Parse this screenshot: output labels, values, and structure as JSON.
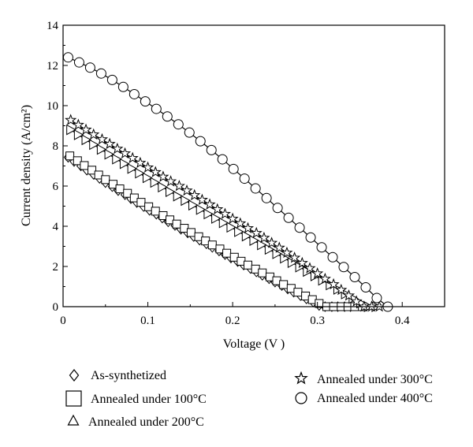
{
  "chart_data": {
    "type": "scatter",
    "xlabel": "Voltage (V )",
    "ylabel": "Current density (A/cm²)",
    "xlim": [
      0,
      0.45
    ],
    "ylim": [
      0,
      14
    ],
    "xticks": [
      {
        "value": 0,
        "label": "0"
      },
      {
        "value": 0.1,
        "label": "0.1"
      },
      {
        "value": 0.2,
        "label": "0.2"
      },
      {
        "value": 0.3,
        "label": "0.3"
      },
      {
        "value": 0.4,
        "label": "0.4"
      }
    ],
    "yticks": [
      {
        "value": 0,
        "label": "0"
      },
      {
        "value": 2,
        "label": "2"
      },
      {
        "value": 4,
        "label": "4"
      },
      {
        "value": 6,
        "label": "6"
      },
      {
        "value": 8,
        "label": "8"
      },
      {
        "value": 10,
        "label": "10"
      },
      {
        "value": 12,
        "label": "12"
      },
      {
        "value": 14,
        "label": "14"
      }
    ],
    "grid": false,
    "legend_position": "bottom",
    "series": [
      {
        "name": "As-synthetized",
        "marker": "diamond",
        "x": [
          0.006,
          0.013,
          0.021,
          0.028,
          0.036,
          0.043,
          0.05,
          0.058,
          0.065,
          0.073,
          0.08,
          0.087,
          0.095,
          0.102,
          0.11,
          0.117,
          0.124,
          0.132,
          0.139,
          0.147,
          0.154,
          0.161,
          0.169,
          0.176,
          0.184,
          0.191,
          0.198,
          0.206,
          0.213,
          0.221,
          0.228,
          0.235,
          0.243,
          0.25,
          0.258,
          0.265,
          0.272,
          0.28,
          0.287,
          0.295,
          0.302,
          0.309,
          0.317,
          0.324,
          0.332,
          0.339
        ],
        "y": [
          7.43,
          7.22,
          7.0,
          6.79,
          6.58,
          6.38,
          6.17,
          5.97,
          5.77,
          5.57,
          5.37,
          5.18,
          4.98,
          4.79,
          4.6,
          4.41,
          4.22,
          4.04,
          3.85,
          3.67,
          3.49,
          3.31,
          3.13,
          2.95,
          2.77,
          2.59,
          2.42,
          2.24,
          2.07,
          1.9,
          1.73,
          1.56,
          1.39,
          1.22,
          1.05,
          0.88,
          0.72,
          0.55,
          0.39,
          0.23,
          0.06,
          0.0,
          0.0,
          0.0,
          0.0,
          0.0
        ]
      },
      {
        "name": "Annealed under 100°C",
        "marker": "square",
        "x": [
          0.008,
          0.017,
          0.025,
          0.034,
          0.042,
          0.05,
          0.059,
          0.067,
          0.076,
          0.084,
          0.092,
          0.101,
          0.109,
          0.118,
          0.126,
          0.134,
          0.143,
          0.151,
          0.16,
          0.168,
          0.176,
          0.185,
          0.193,
          0.202,
          0.21,
          0.218,
          0.227,
          0.235,
          0.244,
          0.252,
          0.26,
          0.269,
          0.277,
          0.286,
          0.294,
          0.302,
          0.311,
          0.319,
          0.328,
          0.336,
          0.344,
          0.353
        ],
        "y": [
          7.5,
          7.26,
          7.02,
          6.79,
          6.55,
          6.32,
          6.09,
          5.86,
          5.64,
          5.41,
          5.19,
          4.97,
          4.75,
          4.53,
          4.32,
          4.11,
          3.9,
          3.69,
          3.48,
          3.27,
          3.07,
          2.87,
          2.66,
          2.46,
          2.26,
          2.07,
          1.87,
          1.68,
          1.48,
          1.29,
          1.1,
          0.91,
          0.72,
          0.53,
          0.35,
          0.16,
          0.0,
          0.0,
          0.0,
          0.0,
          0.0,
          0.0
        ]
      },
      {
        "name": "Annealed under 200°C",
        "marker": "triangle",
        "x": [
          0.009,
          0.018,
          0.027,
          0.036,
          0.045,
          0.054,
          0.063,
          0.072,
          0.081,
          0.09,
          0.099,
          0.108,
          0.117,
          0.126,
          0.135,
          0.144,
          0.153,
          0.162,
          0.171,
          0.18,
          0.189,
          0.198,
          0.207,
          0.216,
          0.225,
          0.234,
          0.243,
          0.252,
          0.261,
          0.27,
          0.279,
          0.288,
          0.297,
          0.306,
          0.315,
          0.324,
          0.333,
          0.342,
          0.351,
          0.36,
          0.369
        ],
        "y": [
          8.8,
          8.55,
          8.3,
          8.06,
          7.82,
          7.58,
          7.34,
          7.11,
          6.87,
          6.64,
          6.41,
          6.18,
          5.95,
          5.72,
          5.5,
          5.28,
          5.05,
          4.83,
          4.61,
          4.39,
          4.17,
          3.95,
          3.73,
          3.51,
          3.29,
          3.07,
          2.85,
          2.63,
          2.41,
          2.19,
          1.97,
          1.75,
          1.53,
          1.31,
          1.08,
          0.86,
          0.63,
          0.41,
          0.18,
          0.0,
          0.0
        ]
      },
      {
        "name": "Annealed under 300°C",
        "marker": "star",
        "x": [
          0.009,
          0.018,
          0.027,
          0.036,
          0.046,
          0.055,
          0.064,
          0.073,
          0.082,
          0.091,
          0.1,
          0.109,
          0.118,
          0.127,
          0.137,
          0.146,
          0.155,
          0.164,
          0.173,
          0.182,
          0.191,
          0.2,
          0.209,
          0.218,
          0.228,
          0.237,
          0.246,
          0.255,
          0.264,
          0.273,
          0.282,
          0.291,
          0.3,
          0.309,
          0.319,
          0.328,
          0.337,
          0.346,
          0.355,
          0.364,
          0.373
        ],
        "y": [
          9.28,
          9.04,
          8.8,
          8.56,
          8.32,
          8.09,
          7.85,
          7.62,
          7.39,
          7.15,
          6.92,
          6.69,
          6.46,
          6.23,
          6.0,
          5.77,
          5.54,
          5.31,
          5.08,
          4.84,
          4.61,
          4.37,
          4.14,
          3.9,
          3.66,
          3.42,
          3.17,
          2.93,
          2.68,
          2.43,
          2.17,
          1.91,
          1.65,
          1.38,
          1.11,
          0.83,
          0.55,
          0.26,
          0.0,
          0.0,
          0.0
        ]
      },
      {
        "name": "Annealed under 400°C",
        "marker": "circle",
        "x": [
          0.006,
          0.019,
          0.032,
          0.045,
          0.058,
          0.071,
          0.084,
          0.097,
          0.11,
          0.123,
          0.136,
          0.149,
          0.162,
          0.175,
          0.188,
          0.201,
          0.214,
          0.227,
          0.24,
          0.253,
          0.266,
          0.279,
          0.292,
          0.305,
          0.318,
          0.331,
          0.344,
          0.357,
          0.37,
          0.383
        ],
        "y": [
          12.4,
          12.15,
          11.89,
          11.6,
          11.28,
          10.93,
          10.57,
          10.21,
          9.84,
          9.46,
          9.07,
          8.66,
          8.23,
          7.79,
          7.33,
          6.85,
          6.37,
          5.88,
          5.4,
          4.91,
          4.42,
          3.93,
          3.44,
          2.95,
          2.46,
          1.97,
          1.47,
          0.96,
          0.43,
          0.0
        ]
      }
    ]
  }
}
